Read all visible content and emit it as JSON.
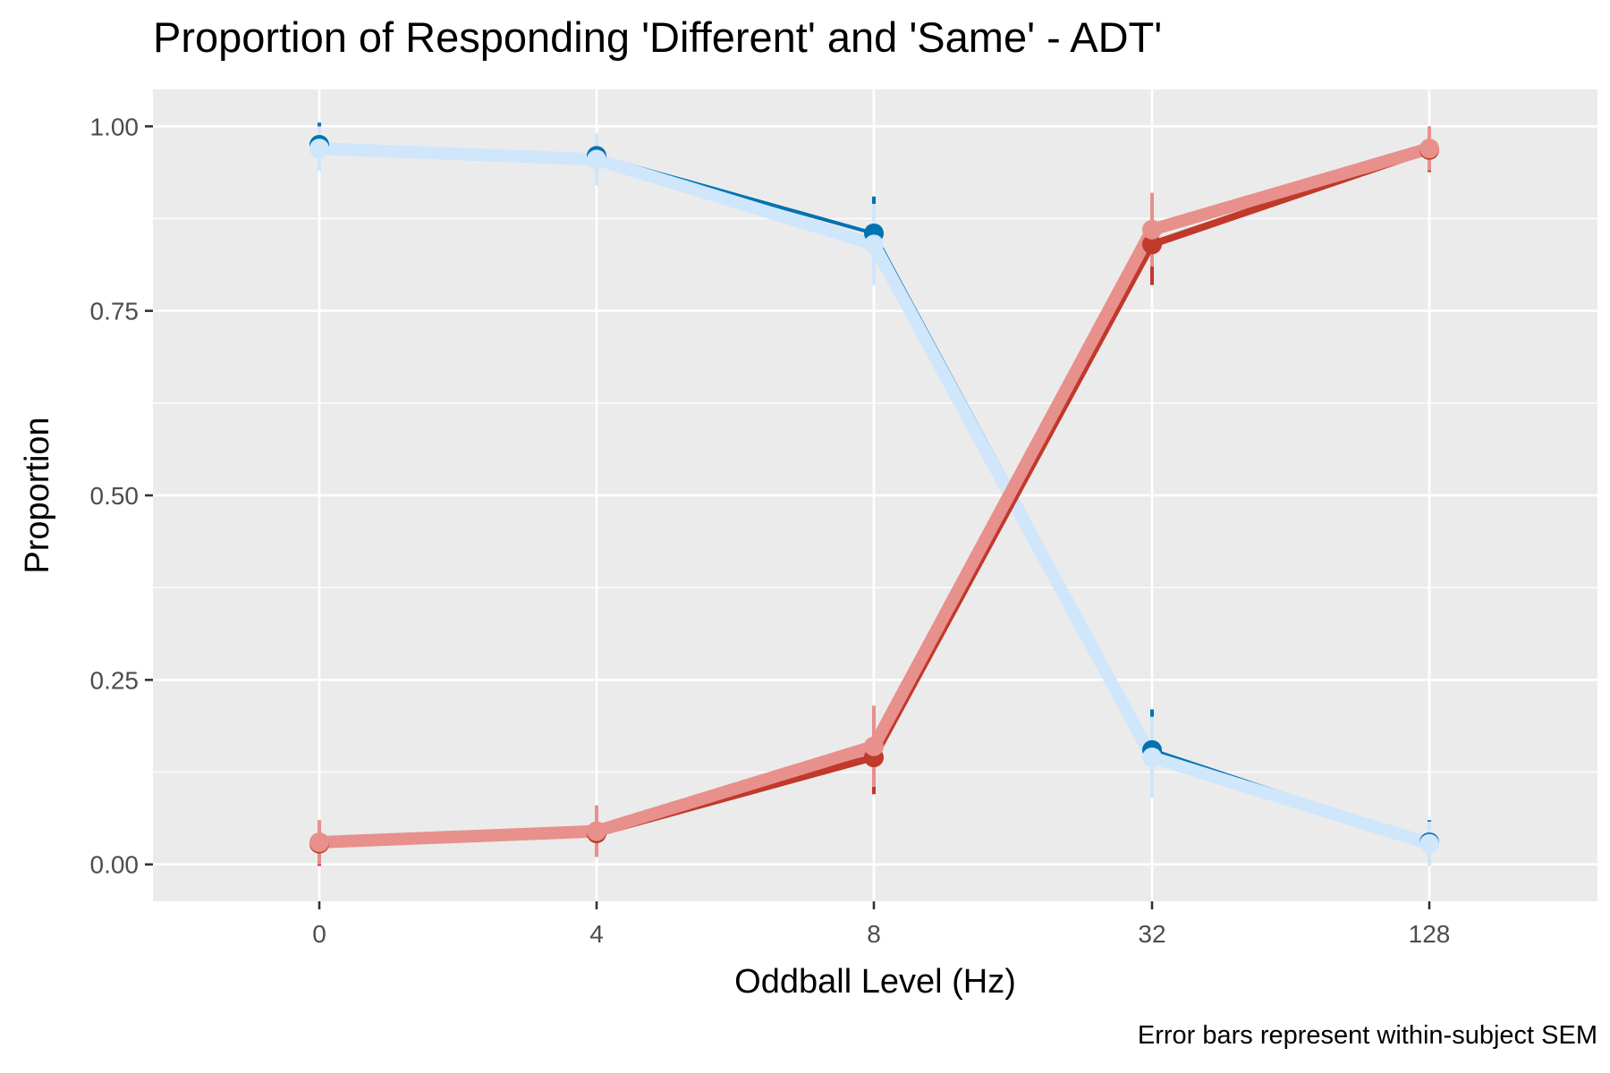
{
  "chart_data": {
    "type": "line",
    "title": "Proportion of Responding 'Different' and 'Same' - ADT'",
    "xlabel": "Oddball Level (Hz)",
    "ylabel": "Proportion",
    "caption": "Error bars represent within-subject SEM",
    "categories": [
      "0",
      "4",
      "8",
      "32",
      "128"
    ],
    "ylim": [
      -0.05,
      1.05
    ],
    "yticks": [
      "0.00",
      "0.25",
      "0.50",
      "0.75",
      "1.00"
    ],
    "ytick_values": [
      0,
      0.25,
      0.5,
      0.75,
      1.0
    ],
    "grid": true,
    "legend": "none",
    "series": [
      {
        "color": "#0072b2",
        "line_weight": 4,
        "values": [
          0.975,
          0.96,
          0.855,
          0.155,
          0.03
        ],
        "sem": [
          0.03,
          0.03,
          0.05,
          0.055,
          0.03
        ]
      },
      {
        "color": "#cfe6fb",
        "line_weight": 14,
        "values": [
          0.97,
          0.955,
          0.84,
          0.145,
          0.028
        ],
        "sem": [
          0.03,
          0.035,
          0.055,
          0.055,
          0.03
        ]
      },
      {
        "color": "#c0392b",
        "line_weight": 8,
        "values": [
          0.028,
          0.042,
          0.145,
          0.84,
          0.968
        ],
        "sem": [
          0.03,
          0.03,
          0.05,
          0.055,
          0.03
        ]
      },
      {
        "color": "#e8908c",
        "line_weight": 14,
        "values": [
          0.03,
          0.045,
          0.16,
          0.86,
          0.97
        ],
        "sem": [
          0.03,
          0.035,
          0.055,
          0.05,
          0.03
        ]
      }
    ]
  }
}
